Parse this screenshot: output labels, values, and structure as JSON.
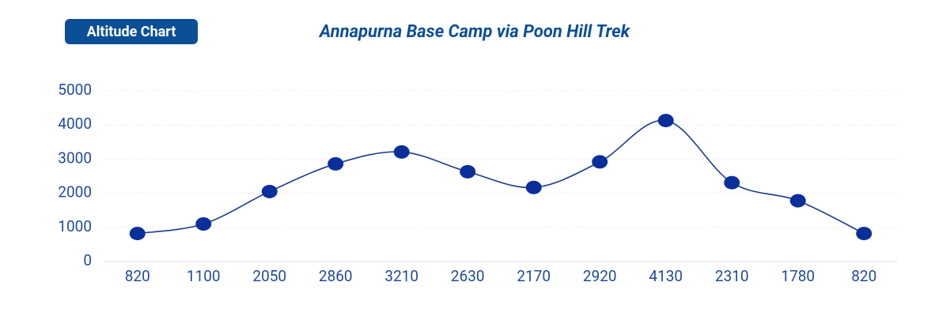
{
  "badge": "Altitude Chart",
  "chart_data": {
    "type": "line",
    "title": "Annapurna Base Camp via Poon Hill Trek",
    "categories": [
      "820",
      "1100",
      "2050",
      "2860",
      "3210",
      "2630",
      "2170",
      "2920",
      "4130",
      "2310",
      "1780",
      "820"
    ],
    "values": [
      820,
      1100,
      2050,
      2860,
      3210,
      2630,
      2170,
      2920,
      4130,
      2310,
      1780,
      820
    ],
    "color": "#0b2f9a",
    "line_color": "#1a3a8c",
    "smooth": true,
    "ylim": [
      0,
      5000
    ],
    "yticks": [
      0,
      1000,
      2000,
      3000,
      4000,
      5000
    ],
    "grid": true
  }
}
